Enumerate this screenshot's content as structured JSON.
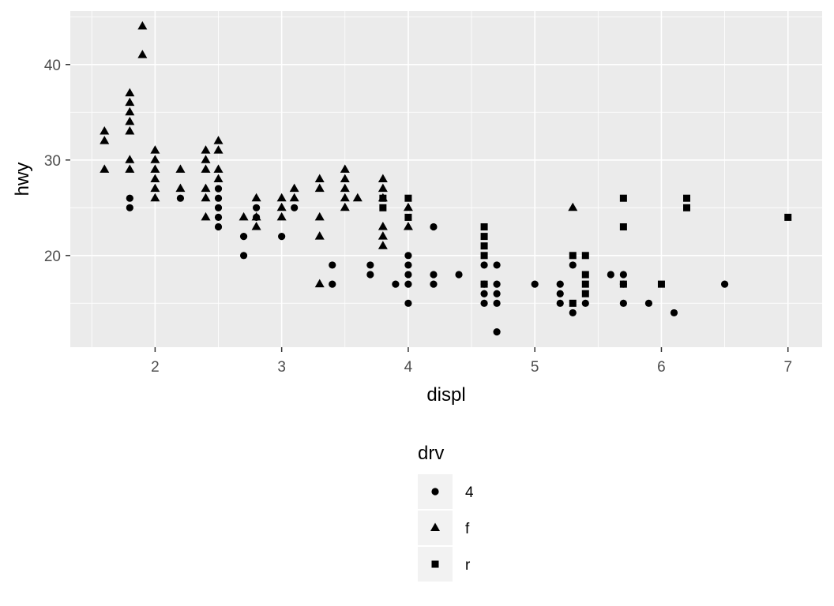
{
  "chart_data": {
    "type": "scatter",
    "title": "",
    "xlabel": "displ",
    "ylabel": "hwy",
    "xlim": [
      1.33,
      7.27
    ],
    "ylim": [
      10.4,
      45.6
    ],
    "xticks": [
      2,
      3,
      4,
      5,
      6,
      7
    ],
    "xtick_labels": [
      "2",
      "3",
      "4",
      "5",
      "6",
      "7"
    ],
    "yticks": [
      20,
      30,
      40
    ],
    "ytick_labels": [
      "20",
      "30",
      "40"
    ],
    "grid": true,
    "panel_background": "#ebebeb",
    "grid_color": "#ffffff",
    "point_color": "#000000",
    "legend": {
      "title": "drv",
      "position": "bottom",
      "entries": [
        {
          "label": "4",
          "shape": "circle"
        },
        {
          "label": "f",
          "shape": "triangle"
        },
        {
          "label": "r",
          "shape": "square"
        }
      ]
    },
    "series": [
      {
        "name": "4",
        "shape": "circle",
        "points": [
          [
            1.8,
            26
          ],
          [
            1.8,
            25
          ],
          [
            2.2,
            26
          ],
          [
            2.5,
            27
          ],
          [
            2.5,
            26
          ],
          [
            2.5,
            25
          ],
          [
            2.5,
            24
          ],
          [
            2.5,
            23
          ],
          [
            2.7,
            22
          ],
          [
            2.7,
            20
          ],
          [
            2.8,
            25
          ],
          [
            2.8,
            24
          ],
          [
            3.0,
            22
          ],
          [
            3.1,
            25
          ],
          [
            3.4,
            19
          ],
          [
            3.4,
            17
          ],
          [
            3.7,
            19
          ],
          [
            3.7,
            18
          ],
          [
            3.9,
            17
          ],
          [
            4.0,
            20
          ],
          [
            4.0,
            19
          ],
          [
            4.0,
            18
          ],
          [
            4.0,
            17
          ],
          [
            4.0,
            15
          ],
          [
            4.2,
            23
          ],
          [
            4.2,
            18
          ],
          [
            4.2,
            17
          ],
          [
            4.4,
            18
          ],
          [
            4.6,
            19
          ],
          [
            4.6,
            17
          ],
          [
            4.6,
            16
          ],
          [
            4.6,
            15
          ],
          [
            4.7,
            19
          ],
          [
            4.7,
            17
          ],
          [
            4.7,
            16
          ],
          [
            4.7,
            15
          ],
          [
            4.7,
            12
          ],
          [
            5.0,
            17
          ],
          [
            5.2,
            17
          ],
          [
            5.2,
            16
          ],
          [
            5.2,
            15
          ],
          [
            5.3,
            19
          ],
          [
            5.3,
            14
          ],
          [
            5.4,
            15
          ],
          [
            5.6,
            18
          ],
          [
            5.7,
            18
          ],
          [
            5.7,
            17
          ],
          [
            5.7,
            15
          ],
          [
            5.9,
            15
          ],
          [
            6.1,
            14
          ],
          [
            6.5,
            17
          ]
        ]
      },
      {
        "name": "f",
        "shape": "triangle",
        "points": [
          [
            1.6,
            33
          ],
          [
            1.6,
            32
          ],
          [
            1.6,
            29
          ],
          [
            1.8,
            37
          ],
          [
            1.8,
            36
          ],
          [
            1.8,
            35
          ],
          [
            1.8,
            34
          ],
          [
            1.8,
            33
          ],
          [
            1.8,
            30
          ],
          [
            1.8,
            29
          ],
          [
            1.9,
            44
          ],
          [
            1.9,
            41
          ],
          [
            2.0,
            31
          ],
          [
            2.0,
            30
          ],
          [
            2.0,
            29
          ],
          [
            2.0,
            28
          ],
          [
            2.0,
            27
          ],
          [
            2.0,
            26
          ],
          [
            2.2,
            29
          ],
          [
            2.2,
            27
          ],
          [
            2.4,
            31
          ],
          [
            2.4,
            30
          ],
          [
            2.4,
            29
          ],
          [
            2.4,
            27
          ],
          [
            2.4,
            26
          ],
          [
            2.4,
            24
          ],
          [
            2.5,
            32
          ],
          [
            2.5,
            31
          ],
          [
            2.5,
            29
          ],
          [
            2.5,
            28
          ],
          [
            2.7,
            24
          ],
          [
            2.8,
            26
          ],
          [
            2.8,
            24
          ],
          [
            2.8,
            23
          ],
          [
            3.0,
            26
          ],
          [
            3.0,
            25
          ],
          [
            3.0,
            24
          ],
          [
            3.1,
            27
          ],
          [
            3.1,
            26
          ],
          [
            3.3,
            28
          ],
          [
            3.3,
            27
          ],
          [
            3.3,
            24
          ],
          [
            3.3,
            22
          ],
          [
            3.3,
            17
          ],
          [
            3.5,
            29
          ],
          [
            3.5,
            28
          ],
          [
            3.5,
            27
          ],
          [
            3.5,
            26
          ],
          [
            3.5,
            25
          ],
          [
            3.6,
            26
          ],
          [
            3.8,
            28
          ],
          [
            3.8,
            27
          ],
          [
            3.8,
            26
          ],
          [
            3.8,
            23
          ],
          [
            3.8,
            22
          ],
          [
            3.8,
            21
          ],
          [
            4.0,
            25
          ],
          [
            4.0,
            23
          ],
          [
            5.3,
            25
          ]
        ]
      },
      {
        "name": "r",
        "shape": "square",
        "points": [
          [
            3.8,
            26
          ],
          [
            3.8,
            25
          ],
          [
            4.0,
            26
          ],
          [
            4.0,
            24
          ],
          [
            4.6,
            23
          ],
          [
            4.6,
            22
          ],
          [
            4.6,
            21
          ],
          [
            4.6,
            20
          ],
          [
            4.6,
            17
          ],
          [
            5.3,
            20
          ],
          [
            5.3,
            15
          ],
          [
            5.4,
            20
          ],
          [
            5.4,
            18
          ],
          [
            5.4,
            17
          ],
          [
            5.4,
            16
          ],
          [
            5.7,
            26
          ],
          [
            5.7,
            23
          ],
          [
            5.7,
            17
          ],
          [
            6.0,
            17
          ],
          [
            6.2,
            26
          ],
          [
            6.2,
            25
          ],
          [
            7.0,
            24
          ]
        ]
      }
    ]
  }
}
